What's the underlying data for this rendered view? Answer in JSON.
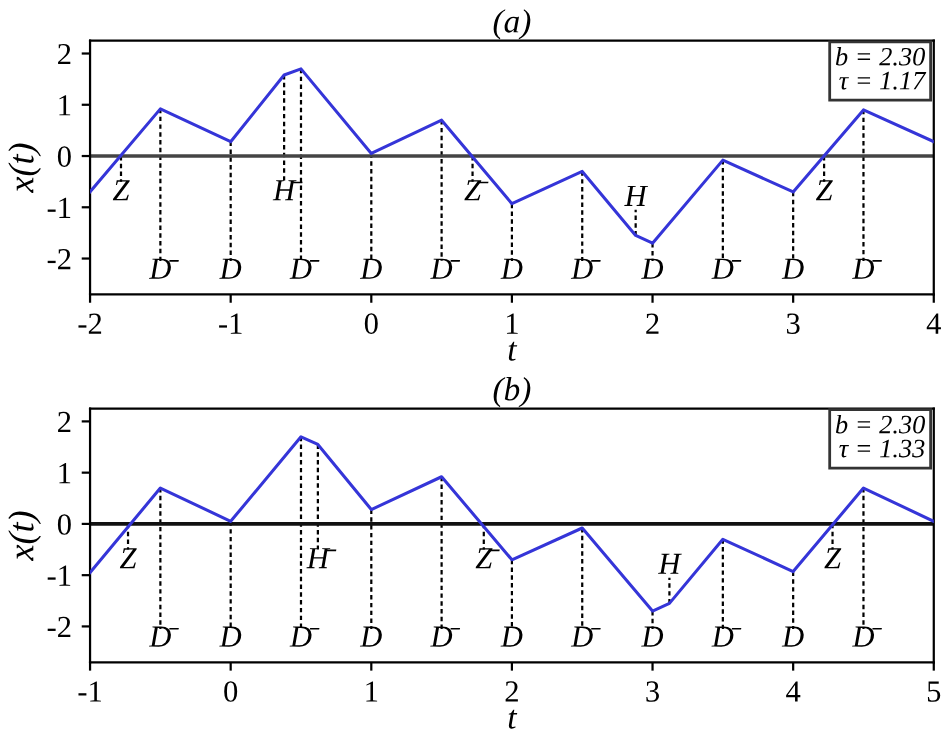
{
  "chart_data": [
    {
      "type": "line",
      "title": "(a)",
      "xlabel": "t",
      "ylabel": "x(t)",
      "xlim": [
        -2,
        4
      ],
      "xticks": [
        -2,
        -1,
        0,
        1,
        2,
        3,
        4
      ],
      "ylim": [
        -2.7,
        2.25
      ],
      "yticks": [
        -2,
        -1,
        0,
        1,
        2
      ],
      "grid": false,
      "legend": false,
      "marker": "none",
      "line_style": "solid",
      "series": [
        {
          "color": "#3535d8",
          "x": [
            -2,
            -1.5,
            -1,
            -0.62,
            -0.5,
            0,
            0.5,
            1,
            1.5,
            1.88,
            2,
            2.5,
            3,
            3.5,
            4
          ],
          "values": [
            -0.7,
            0.92,
            0.28,
            1.58,
            1.7,
            0.05,
            0.7,
            -0.93,
            -0.3,
            -1.55,
            -1.7,
            -0.08,
            -0.7,
            0.9,
            0.28
          ]
        }
      ],
      "ref_lines": [
        {
          "axis": "y",
          "value": 0,
          "color": "#444444"
        }
      ],
      "annotations": [
        "b = 2.30\nτ = 1.17",
        {
          "text": "Z",
          "x": -1.78,
          "y": 0
        },
        {
          "text": "D̄",
          "x": -1.5,
          "y": 0.92
        },
        {
          "text": "D",
          "x": -1,
          "y": 0.28
        },
        {
          "text": "H̄",
          "x": -0.62,
          "y": 1.58
        },
        {
          "text": "D̄",
          "x": -0.5,
          "y": 1.7
        },
        {
          "text": "D",
          "x": 0,
          "y": 0.05
        },
        {
          "text": "D̄",
          "x": 0.5,
          "y": 0.7
        },
        {
          "text": "Z̄",
          "x": 0.72,
          "y": 0
        },
        {
          "text": "D",
          "x": 1,
          "y": -0.93
        },
        {
          "text": "D̄",
          "x": 1.5,
          "y": -0.3
        },
        {
          "text": "H",
          "x": 1.88,
          "y": -1.55
        },
        {
          "text": "D",
          "x": 2,
          "y": -1.7
        },
        {
          "text": "D̄",
          "x": 2.5,
          "y": -0.08
        },
        {
          "text": "D",
          "x": 3,
          "y": -0.7
        },
        {
          "text": "Z",
          "x": 3.22,
          "y": 0
        },
        {
          "text": "D̄",
          "x": 3.5,
          "y": 0.9
        }
      ]
    },
    {
      "type": "line",
      "title": "(b)",
      "xlabel": "t",
      "ylabel": "x(t)",
      "xlim": [
        -1,
        5
      ],
      "xticks": [
        -1,
        0,
        1,
        2,
        3,
        4,
        5
      ],
      "ylim": [
        -2.7,
        2.25
      ],
      "yticks": [
        -2,
        -1,
        0,
        1,
        2
      ],
      "grid": false,
      "legend": false,
      "marker": "none",
      "line_style": "solid",
      "series": [
        {
          "color": "#3535d8",
          "x": [
            -1,
            -0.5,
            0,
            0.5,
            0.62,
            1,
            1.5,
            2,
            2.5,
            3,
            3.12,
            3.5,
            4,
            4.5,
            5
          ],
          "values": [
            -0.95,
            0.7,
            0.05,
            1.7,
            1.55,
            0.28,
            0.92,
            -0.7,
            -0.08,
            -1.7,
            -1.55,
            -0.3,
            -0.93,
            0.7,
            0.05
          ]
        }
      ],
      "ref_lines": [
        {
          "axis": "y",
          "value": 0,
          "color": "#111111"
        }
      ],
      "annotations": [
        "b = 2.30\nτ = 1.33",
        {
          "text": "Z",
          "x": -0.73,
          "y": 0
        },
        {
          "text": "D̄",
          "x": -0.5,
          "y": 0.7
        },
        {
          "text": "D",
          "x": 0,
          "y": 0.05
        },
        {
          "text": "D̄",
          "x": 0.5,
          "y": 1.7
        },
        {
          "text": "H̄",
          "x": 0.62,
          "y": 1.55
        },
        {
          "text": "D",
          "x": 1,
          "y": 0.28
        },
        {
          "text": "D̄",
          "x": 1.5,
          "y": 0.92
        },
        {
          "text": "Z̄",
          "x": 1.8,
          "y": 0
        },
        {
          "text": "D",
          "x": 2,
          "y": -0.7
        },
        {
          "text": "D̄",
          "x": 2.5,
          "y": -0.08
        },
        {
          "text": "D",
          "x": 3,
          "y": -1.7
        },
        {
          "text": "H",
          "x": 3.12,
          "y": -1.55
        },
        {
          "text": "D̄",
          "x": 3.5,
          "y": -0.3
        },
        {
          "text": "D",
          "x": 4,
          "y": -0.93
        },
        {
          "text": "Z",
          "x": 4.28,
          "y": 0
        },
        {
          "text": "D̄",
          "x": 4.5,
          "y": 0.7
        }
      ]
    }
  ]
}
